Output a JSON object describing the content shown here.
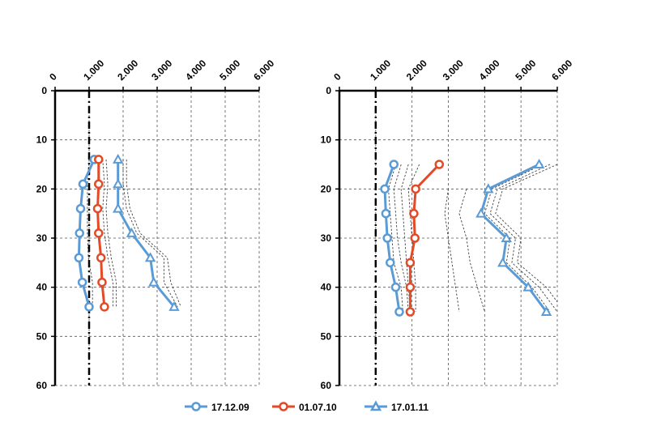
{
  "chart_data": [
    {
      "type": "line",
      "x_axis": "top",
      "y_inverted": true,
      "xlim": [
        0,
        6
      ],
      "ylim": [
        0,
        60
      ],
      "x_ticks": [
        "0",
        "1.000",
        "2.000",
        "3.000",
        "4.000",
        "5.000",
        "6.000"
      ],
      "y_ticks": [
        "0",
        "10",
        "20",
        "30",
        "40",
        "50",
        "60"
      ],
      "grid": true,
      "reference_line_x": 1.0,
      "series": [
        {
          "name": "17.12.09",
          "color": "#5b9bd5",
          "marker": "circle",
          "points": [
            [
              1.15,
              14
            ],
            [
              0.82,
              19
            ],
            [
              0.75,
              24
            ],
            [
              0.72,
              29
            ],
            [
              0.7,
              34
            ],
            [
              0.8,
              39
            ],
            [
              1.0,
              44
            ]
          ]
        },
        {
          "name": "01.07.10",
          "color": "#e34a26",
          "marker": "circle",
          "points": [
            [
              1.28,
              14
            ],
            [
              1.28,
              19
            ],
            [
              1.25,
              24
            ],
            [
              1.28,
              29
            ],
            [
              1.35,
              34
            ],
            [
              1.38,
              39
            ],
            [
              1.45,
              44
            ]
          ]
        },
        {
          "name": "17.01.11",
          "color": "#5b9bd5",
          "marker": "triangle",
          "points": [
            [
              1.85,
              14
            ],
            [
              1.85,
              19
            ],
            [
              1.85,
              24
            ],
            [
              2.25,
              29
            ],
            [
              2.8,
              34
            ],
            [
              2.9,
              39
            ],
            [
              3.5,
              44
            ]
          ]
        }
      ],
      "range_lines": [
        [
          [
            1.0,
            14
          ],
          [
            0.95,
            19
          ],
          [
            0.95,
            24
          ],
          [
            0.95,
            29
          ],
          [
            0.98,
            34
          ],
          [
            1.1,
            39
          ],
          [
            1.1,
            44
          ]
        ],
        [
          [
            1.4,
            14
          ],
          [
            1.45,
            19
          ],
          [
            1.4,
            24
          ],
          [
            1.45,
            29
          ],
          [
            1.55,
            34
          ],
          [
            1.7,
            39
          ],
          [
            1.7,
            44
          ]
        ],
        [
          [
            1.5,
            14
          ],
          [
            1.55,
            19
          ],
          [
            1.5,
            24
          ],
          [
            1.55,
            29
          ],
          [
            1.65,
            34
          ],
          [
            1.8,
            39
          ],
          [
            1.8,
            44
          ]
        ],
        [
          [
            2.0,
            14
          ],
          [
            2.0,
            19
          ],
          [
            2.1,
            24
          ],
          [
            2.4,
            29
          ],
          [
            3.2,
            34
          ],
          [
            3.2,
            39
          ],
          [
            3.6,
            44
          ]
        ],
        [
          [
            2.1,
            14
          ],
          [
            2.1,
            19
          ],
          [
            2.2,
            24
          ],
          [
            2.5,
            29
          ],
          [
            3.3,
            34
          ],
          [
            3.4,
            39
          ],
          [
            3.7,
            44
          ]
        ]
      ]
    },
    {
      "type": "line",
      "x_axis": "top",
      "y_inverted": true,
      "xlim": [
        0,
        6
      ],
      "ylim": [
        0,
        60
      ],
      "x_ticks": [
        "0",
        "1.000",
        "2.000",
        "3.000",
        "4.000",
        "5.000",
        "6.000"
      ],
      "y_ticks": [
        "0",
        "10",
        "20",
        "30",
        "40",
        "50",
        "60"
      ],
      "grid": true,
      "reference_line_x": 1.0,
      "series": [
        {
          "name": "17.12.09",
          "color": "#5b9bd5",
          "marker": "circle",
          "points": [
            [
              1.5,
              15
            ],
            [
              1.25,
              20
            ],
            [
              1.28,
              25
            ],
            [
              1.32,
              30
            ],
            [
              1.4,
              35
            ],
            [
              1.55,
              40
            ],
            [
              1.65,
              45
            ]
          ]
        },
        {
          "name": "01.07.10",
          "color": "#e34a26",
          "marker": "circle",
          "points": [
            [
              2.75,
              15
            ],
            [
              2.1,
              20
            ],
            [
              2.05,
              25
            ],
            [
              2.08,
              30
            ],
            [
              1.95,
              35
            ],
            [
              1.95,
              40
            ],
            [
              1.95,
              45
            ]
          ]
        },
        {
          "name": "17.01.11",
          "color": "#5b9bd5",
          "marker": "triangle",
          "points": [
            [
              5.5,
              15
            ],
            [
              4.1,
              20
            ],
            [
              3.9,
              25
            ],
            [
              4.6,
              30
            ],
            [
              4.5,
              35
            ],
            [
              5.2,
              40
            ],
            [
              5.7,
              45
            ]
          ]
        }
      ],
      "range_lines": [
        [
          [
            1.55,
            15
          ],
          [
            1.35,
            20
          ],
          [
            1.4,
            25
          ],
          [
            1.45,
            30
          ],
          [
            1.5,
            35
          ],
          [
            1.7,
            40
          ],
          [
            1.75,
            45
          ]
        ],
        [
          [
            1.7,
            15
          ],
          [
            1.5,
            20
          ],
          [
            1.55,
            25
          ],
          [
            1.6,
            30
          ],
          [
            1.7,
            35
          ],
          [
            1.85,
            40
          ],
          [
            1.9,
            45
          ]
        ],
        [
          [
            1.9,
            15
          ],
          [
            1.7,
            20
          ],
          [
            1.75,
            25
          ],
          [
            1.8,
            30
          ],
          [
            1.85,
            35
          ],
          [
            1.9,
            40
          ],
          [
            1.95,
            45
          ]
        ],
        [
          [
            2.2,
            15
          ],
          [
            1.9,
            20
          ],
          [
            1.95,
            25
          ],
          [
            2.0,
            30
          ],
          [
            2.05,
            35
          ],
          [
            2.1,
            40
          ],
          [
            2.1,
            45
          ]
        ],
        [
          [
            3.0,
            20
          ],
          [
            2.9,
            25
          ],
          [
            3.0,
            30
          ],
          [
            3.1,
            35
          ],
          [
            3.2,
            40
          ],
          [
            3.3,
            45
          ]
        ],
        [
          [
            3.5,
            20
          ],
          [
            3.3,
            25
          ],
          [
            3.5,
            30
          ],
          [
            3.6,
            35
          ],
          [
            3.8,
            40
          ],
          [
            4.0,
            45
          ]
        ],
        [
          [
            5.6,
            15
          ],
          [
            4.2,
            20
          ],
          [
            4.0,
            25
          ],
          [
            4.7,
            30
          ],
          [
            4.6,
            35
          ],
          [
            5.3,
            40
          ],
          [
            5.8,
            45
          ]
        ],
        [
          [
            5.8,
            15
          ],
          [
            4.35,
            20
          ],
          [
            4.15,
            25
          ],
          [
            4.85,
            30
          ],
          [
            4.75,
            35
          ],
          [
            5.5,
            40
          ],
          [
            6.0,
            45
          ]
        ],
        [
          [
            6.0,
            15
          ],
          [
            4.5,
            20
          ],
          [
            4.3,
            25
          ],
          [
            5.0,
            30
          ],
          [
            4.9,
            35
          ],
          [
            5.7,
            40
          ],
          [
            6.0,
            43
          ]
        ]
      ]
    }
  ],
  "legend": [
    {
      "label": "17.12.09",
      "color": "#5b9bd5",
      "marker": "circle"
    },
    {
      "label": "01.07.10",
      "color": "#e34a26",
      "marker": "circle"
    },
    {
      "label": "17.01.11",
      "color": "#5b9bd5",
      "marker": "triangle"
    }
  ]
}
